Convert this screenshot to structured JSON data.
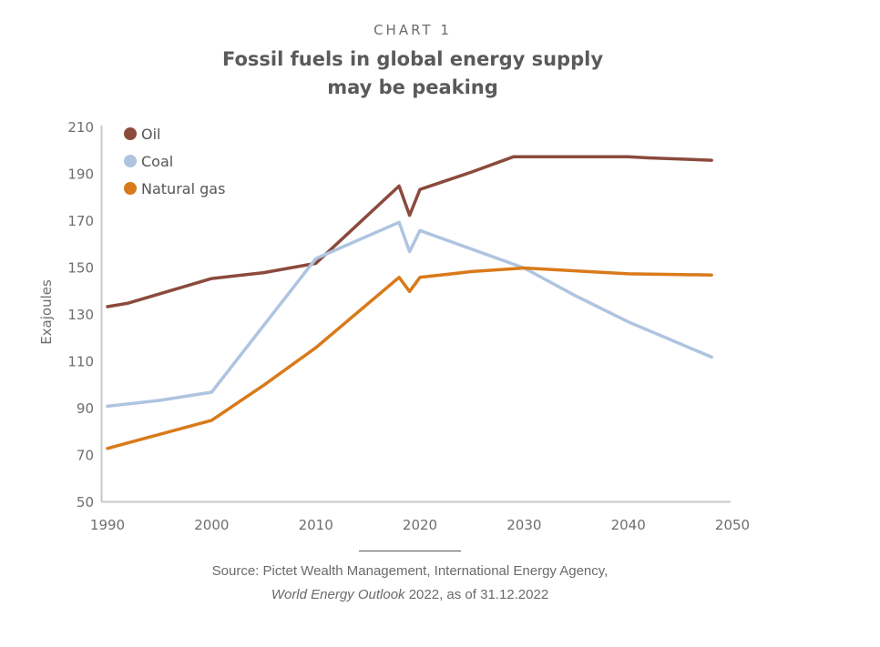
{
  "header": {
    "kicker": "CHART 1",
    "title_line1": "Fossil fuels in global energy supply",
    "title_line2": "may be peaking"
  },
  "footer": {
    "source_line1": "Source: Pictet Wealth Management, International Energy Agency,",
    "source_italic": "World Energy Outlook",
    "source_rest": " 2022, as of 31.12.2022"
  },
  "chart_data": {
    "type": "line",
    "title": "Fossil fuels in global energy supply may be peaking",
    "xlabel": "",
    "ylabel": "Exajoules",
    "xlim": [
      1990,
      2050
    ],
    "ylim": [
      50,
      210
    ],
    "xticks": [
      1990,
      2000,
      2010,
      2020,
      2030,
      2040,
      2050
    ],
    "yticks": [
      50,
      70,
      90,
      110,
      130,
      150,
      170,
      190,
      210
    ],
    "grid": false,
    "legend_position": "top-left",
    "series": [
      {
        "name": "Oil",
        "color": "#8b4a3c",
        "x": [
          1990,
          1992,
          2000,
          2005,
          2010,
          2018,
          2019,
          2020,
          2025,
          2029,
          2035,
          2040,
          2042,
          2048
        ],
        "values": [
          133.5,
          135,
          145.5,
          148,
          152,
          185,
          172.5,
          183.5,
          191,
          197.5,
          197.5,
          197.5,
          197,
          196
        ]
      },
      {
        "name": "Coal",
        "color": "#aec4e0",
        "x": [
          1990,
          1995,
          2000,
          2010,
          2018,
          2019,
          2020,
          2030,
          2035,
          2040,
          2048
        ],
        "values": [
          91,
          93.5,
          97,
          154,
          169.5,
          157,
          166,
          150,
          138,
          127,
          112
        ]
      },
      {
        "name": "Natural gas",
        "color": "#d97a1a",
        "x": [
          1990,
          2000,
          2005,
          2010,
          2018,
          2019,
          2020,
          2025,
          2030,
          2040,
          2048
        ],
        "values": [
          73,
          85,
          100,
          116,
          146,
          140,
          146,
          148.5,
          150,
          147.5,
          147
        ]
      }
    ]
  }
}
